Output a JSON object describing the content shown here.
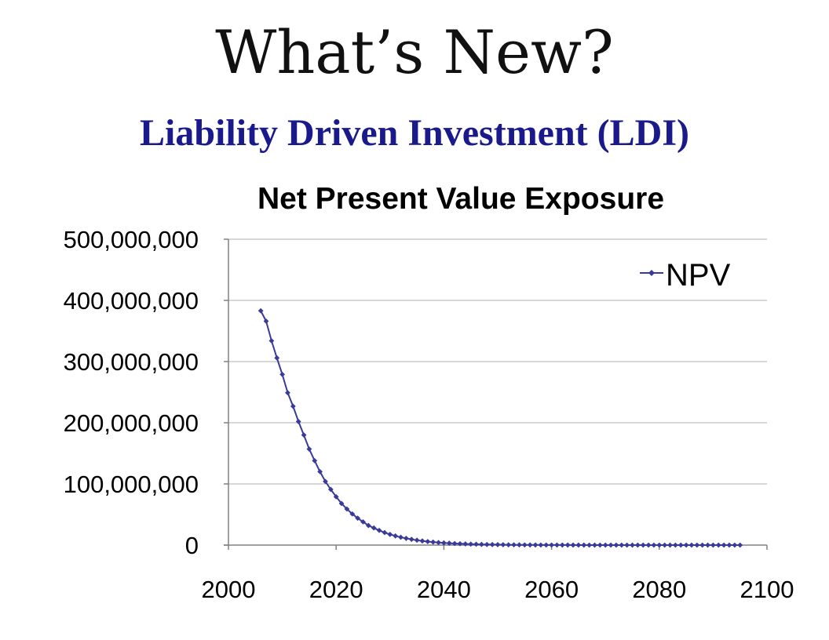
{
  "slide": {
    "title": "What’s New?",
    "subtitle": "Liability Driven Investment (LDI)",
    "subtitle_color": "#1a1a8c"
  },
  "chart_data": {
    "type": "line",
    "title": "Net Present Value Exposure",
    "xlabel": "",
    "ylabel": "",
    "xlim": [
      2000,
      2100
    ],
    "ylim": [
      0,
      500000000
    ],
    "x_ticks": [
      2000,
      2020,
      2040,
      2060,
      2080,
      2100
    ],
    "y_ticks": [
      0,
      100000000,
      200000000,
      300000000,
      400000000,
      500000000
    ],
    "x_tick_labels": [
      "2000",
      "2020",
      "2040",
      "2060",
      "2080",
      "2100"
    ],
    "y_tick_labels": [
      "0",
      "100,000,000",
      "200,000,000",
      "300,000,000",
      "400,000,000",
      "500,000,000"
    ],
    "grid": "horizontal",
    "legend_position": "top-right",
    "colors": {
      "series": "#3a3a9a",
      "gridline": "#bfbfbf",
      "axis": "#808080"
    },
    "series": [
      {
        "name": "NPV",
        "marker": "diamond",
        "x": [
          2006,
          2007,
          2008,
          2009,
          2010,
          2011,
          2012,
          2013,
          2014,
          2015,
          2016,
          2017,
          2018,
          2019,
          2020,
          2021,
          2022,
          2023,
          2024,
          2025,
          2026,
          2027,
          2028,
          2029,
          2030,
          2031,
          2032,
          2033,
          2034,
          2035,
          2036,
          2037,
          2038,
          2039,
          2040,
          2041,
          2042,
          2043,
          2044,
          2045,
          2046,
          2047,
          2048,
          2049,
          2050,
          2051,
          2052,
          2053,
          2054,
          2055,
          2056,
          2057,
          2058,
          2059,
          2060,
          2061,
          2062,
          2063,
          2064,
          2065,
          2066,
          2067,
          2068,
          2069,
          2070,
          2071,
          2072,
          2073,
          2074,
          2075,
          2076,
          2077,
          2078,
          2079,
          2080,
          2081,
          2082,
          2083,
          2084,
          2085,
          2086,
          2087,
          2088,
          2089,
          2090,
          2091,
          2092,
          2093,
          2094,
          2095
        ],
        "values": [
          383000000,
          366000000,
          334000000,
          306000000,
          279000000,
          249000000,
          227000000,
          202000000,
          180000000,
          157000000,
          138000000,
          120000000,
          104000000,
          91000000,
          79000000,
          68000000,
          59000000,
          51000000,
          44000000,
          38000000,
          32000000,
          28000000,
          24000000,
          20500000,
          17500000,
          15000000,
          12800000,
          11000000,
          9400000,
          8000000,
          6800000,
          5800000,
          5000000,
          4200000,
          3600000,
          3100000,
          2600000,
          2200000,
          1900000,
          1600000,
          1400000,
          1200000,
          1000000,
          850000,
          720000,
          610000,
          520000,
          440000,
          370000,
          320000,
          270000,
          230000,
          195000,
          165000,
          140000,
          120000,
          100000,
          85000,
          72000,
          61000,
          52000,
          44000,
          37000,
          32000,
          27000,
          23000,
          19500,
          16500,
          14000,
          12000,
          10000,
          8500,
          7200,
          6100,
          5200,
          4400,
          3700,
          3200,
          2700,
          2300,
          1950,
          1650,
          1400,
          1200,
          1000,
          850,
          720,
          610,
          520,
          440
        ]
      }
    ]
  }
}
